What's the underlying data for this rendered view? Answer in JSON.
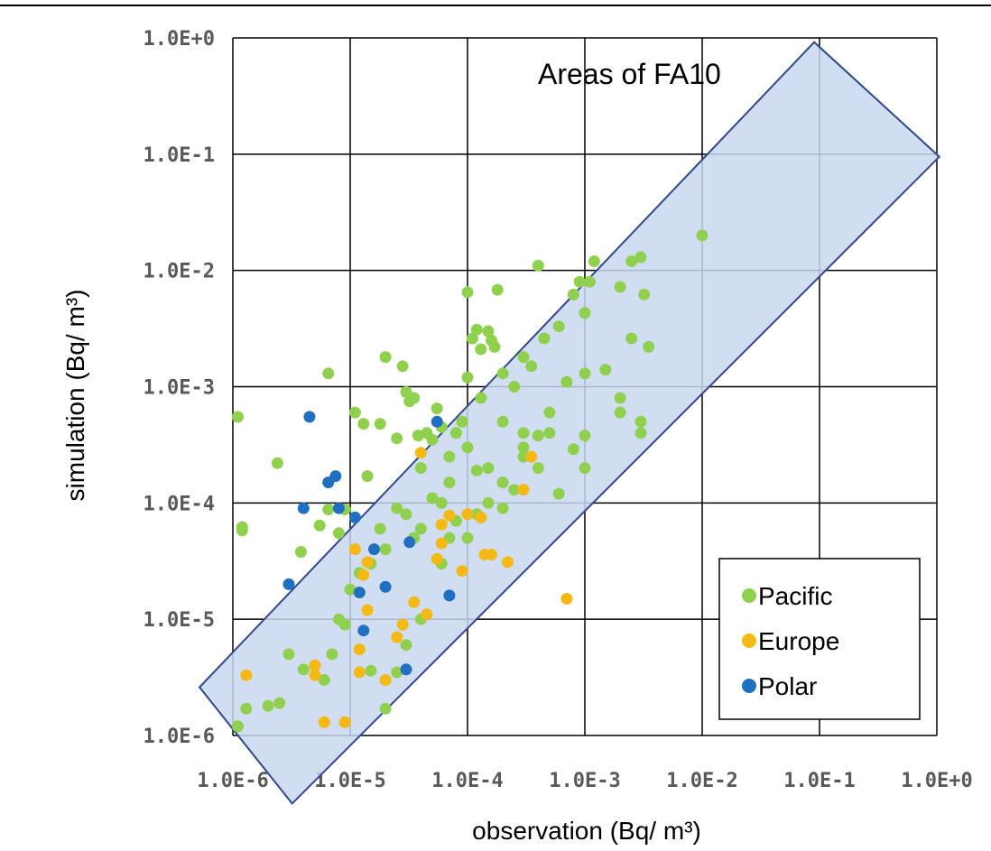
{
  "chart_data": {
    "type": "scatter",
    "title": "",
    "xlabel": "observation (Bq/ m³)",
    "ylabel": "simulation (Bq/ m³)",
    "xscale": "log",
    "yscale": "log",
    "xlim": [
      1e-06,
      1
    ],
    "ylim": [
      1e-06,
      1
    ],
    "grid": true,
    "legend_position": "bottom-right",
    "x_tick_labels": [
      "1.0E-6",
      "1.0E-5",
      "1.0E-4",
      "1.0E-3",
      "1.0E-2",
      "1.0E-1",
      "1.0E+0"
    ],
    "y_tick_labels": [
      "1.0E-6",
      "1.0E-5",
      "1.0E-4",
      "1.0E-3",
      "1.0E-2",
      "1.0E-1",
      "1.0E+0"
    ],
    "annotation": "Areas of FA10",
    "band": {
      "label": "Areas of FA10",
      "factor": 10,
      "fill": "#c9d7ee",
      "stroke": "#2e4a8a"
    },
    "series": [
      {
        "name": "Pacific",
        "color": "#8fd14f",
        "points": [
          [
            1.1e-06,
            0.00055
          ],
          [
            1.2e-06,
            6.2e-05
          ],
          [
            1.2e-06,
            5.8e-05
          ],
          [
            2.4e-06,
            0.00022
          ],
          [
            3.8e-06,
            3.8e-05
          ],
          [
            6.5e-06,
            0.0013
          ],
          [
            5.5e-06,
            6.4e-05
          ],
          [
            6.5e-06,
            8.8e-05
          ],
          [
            8e-06,
            5.5e-05
          ],
          [
            9e-06,
            8.8e-05
          ],
          [
            1.1e-05,
            0.0006
          ],
          [
            1.3e-05,
            0.00048
          ],
          [
            1.4e-05,
            0.00017
          ],
          [
            1.8e-05,
            0.00048
          ],
          [
            2e-05,
            0.0018
          ],
          [
            2.5e-05,
            0.00036
          ],
          [
            2.8e-05,
            0.0015
          ],
          [
            3e-05,
            0.0009
          ],
          [
            3.2e-05,
            0.00075
          ],
          [
            3.5e-05,
            0.0008
          ],
          [
            3.8e-05,
            0.00038
          ],
          [
            4e-05,
            0.0002
          ],
          [
            4.5e-05,
            0.0004
          ],
          [
            5e-05,
            0.00035
          ],
          [
            5.5e-05,
            0.00065
          ],
          [
            6e-05,
            0.00045
          ],
          [
            7e-05,
            0.00025
          ],
          [
            8e-05,
            0.0004
          ],
          [
            9e-05,
            0.0005
          ],
          [
            0.0001,
            0.0065
          ],
          [
            0.00011,
            0.0026
          ],
          [
            0.00012,
            0.0031
          ],
          [
            0.00013,
            0.0021
          ],
          [
            0.00015,
            0.003
          ],
          [
            0.00016,
            0.0025
          ],
          [
            0.00018,
            0.0068
          ],
          [
            0.00017,
            0.0022
          ],
          [
            0.0002,
            0.0013
          ],
          [
            0.00025,
            0.001
          ],
          [
            0.0003,
            0.0018
          ],
          [
            0.00035,
            0.0015
          ],
          [
            0.0004,
            0.011
          ],
          [
            0.00045,
            0.0026
          ],
          [
            0.0006,
            0.0033
          ],
          [
            0.0008,
            0.0062
          ],
          [
            0.0009,
            0.008
          ],
          [
            0.001,
            0.0043
          ],
          [
            0.0011,
            0.008
          ],
          [
            0.0012,
            0.012
          ],
          [
            0.0015,
            0.0014
          ],
          [
            0.002,
            0.0072
          ],
          [
            0.0025,
            0.0026
          ],
          [
            0.003,
            0.013
          ],
          [
            0.0032,
            0.0062
          ],
          [
            0.0035,
            0.0022
          ],
          [
            0.01,
            0.02
          ],
          [
            0.0025,
            0.012
          ],
          [
            0.0001,
            0.0012
          ],
          [
            0.00013,
            0.0008
          ],
          [
            0.0002,
            0.0005
          ],
          [
            0.0003,
            0.0004
          ],
          [
            0.0005,
            0.0006
          ],
          [
            0.0007,
            0.0011
          ],
          [
            0.001,
            0.0013
          ],
          [
            0.002,
            0.0008
          ],
          [
            0.003,
            0.0005
          ],
          [
            0.003,
            0.0004
          ],
          [
            0.002,
            0.0006
          ],
          [
            0.001,
            0.00038
          ],
          [
            0.0008,
            0.00029
          ],
          [
            0.0005,
            0.0004
          ],
          [
            0.0004,
            0.00038
          ],
          [
            0.001,
            0.0002
          ],
          [
            0.0006,
            0.00012
          ],
          [
            0.0004,
            0.0002
          ],
          [
            0.0003,
            0.0003
          ],
          [
            0.0002,
            0.00015
          ],
          [
            0.00015,
            0.0002
          ],
          [
            0.00012,
            0.00019
          ],
          [
            0.0001,
            0.0003
          ],
          [
            9e-05,
            0.0005
          ],
          [
            7e-05,
            0.00015
          ],
          [
            6e-05,
            0.0001
          ],
          [
            5e-05,
            0.00011
          ],
          [
            4e-05,
            6e-05
          ],
          [
            3.5e-05,
            5e-05
          ],
          [
            3e-05,
            8e-05
          ],
          [
            2.5e-05,
            9e-05
          ],
          [
            2e-05,
            4e-05
          ],
          [
            1.8e-05,
            6e-05
          ],
          [
            1.5e-05,
            3e-05
          ],
          [
            1.2e-05,
            2.5e-05
          ],
          [
            1e-05,
            1.8e-05
          ],
          [
            9e-06,
            9e-06
          ],
          [
            8e-06,
            1e-05
          ],
          [
            7e-06,
            5e-06
          ],
          [
            6e-06,
            3e-06
          ],
          [
            5e-06,
            4e-06
          ],
          [
            4e-06,
            3.7e-06
          ],
          [
            3e-06,
            5e-06
          ],
          [
            2e-06,
            1.8e-06
          ],
          [
            2.5e-06,
            1.9e-06
          ],
          [
            1.3e-06,
            1.7e-06
          ],
          [
            1.1e-06,
            1.2e-06
          ],
          [
            1.5e-05,
            3.6e-06
          ],
          [
            2e-05,
            1.7e-06
          ],
          [
            2.5e-05,
            3.5e-06
          ],
          [
            3e-05,
            6e-06
          ],
          [
            4e-05,
            1e-05
          ],
          [
            6e-05,
            3e-05
          ],
          [
            7e-05,
            5e-05
          ],
          [
            8e-05,
            7e-05
          ],
          [
            0.0001,
            5e-05
          ],
          [
            0.00012,
            8e-05
          ],
          [
            0.00015,
            0.0001
          ],
          [
            0.0002,
            9e-05
          ],
          [
            0.00025,
            0.00013
          ],
          [
            0.0003,
            0.00025
          ]
        ]
      },
      {
        "name": "Europe",
        "color": "#f5b915",
        "points": [
          [
            1.3e-06,
            3.3e-06
          ],
          [
            5e-06,
            4e-06
          ],
          [
            5e-06,
            3.3e-06
          ],
          [
            6e-06,
            1.3e-06
          ],
          [
            9e-06,
            1.3e-06
          ],
          [
            1.2e-05,
            5.5e-06
          ],
          [
            1.2e-05,
            3.5e-06
          ],
          [
            1.3e-05,
            2.4e-05
          ],
          [
            1.4e-05,
            1.2e-05
          ],
          [
            1.4e-05,
            3.1e-05
          ],
          [
            2e-05,
            3e-06
          ],
          [
            2.5e-05,
            7e-06
          ],
          [
            2.8e-05,
            9e-06
          ],
          [
            3.5e-05,
            1.4e-05
          ],
          [
            4e-05,
            0.00027
          ],
          [
            5.5e-05,
            3.3e-05
          ],
          [
            6e-05,
            4.5e-05
          ],
          [
            6e-05,
            6.5e-05
          ],
          [
            7e-05,
            7.8e-05
          ],
          [
            9e-05,
            2.6e-05
          ],
          [
            0.0001,
            8e-05
          ],
          [
            0.00013,
            7.5e-05
          ],
          [
            0.00014,
            3.6e-05
          ],
          [
            0.00016,
            3.6e-05
          ],
          [
            0.00022,
            3.1e-05
          ],
          [
            0.0003,
            0.00013
          ],
          [
            0.00035,
            0.00025
          ],
          [
            0.0007,
            1.5e-05
          ],
          [
            1.1e-05,
            4e-05
          ],
          [
            4.5e-05,
            1.1e-05
          ]
        ]
      },
      {
        "name": "Polar",
        "color": "#1f70c1",
        "points": [
          [
            4.5e-06,
            0.00055
          ],
          [
            6.5e-06,
            0.00015
          ],
          [
            7.5e-06,
            0.00017
          ],
          [
            4e-06,
            9e-05
          ],
          [
            8e-06,
            9e-05
          ],
          [
            3e-06,
            2e-05
          ],
          [
            1.2e-05,
            1.7e-05
          ],
          [
            1.6e-05,
            4e-05
          ],
          [
            2e-05,
            1.9e-05
          ],
          [
            1.3e-05,
            8e-06
          ],
          [
            3.2e-05,
            4.6e-05
          ],
          [
            7e-05,
            1.6e-05
          ],
          [
            3e-05,
            3.7e-06
          ],
          [
            1.1e-05,
            7.5e-05
          ],
          [
            5.5e-05,
            0.0005
          ]
        ]
      }
    ]
  }
}
